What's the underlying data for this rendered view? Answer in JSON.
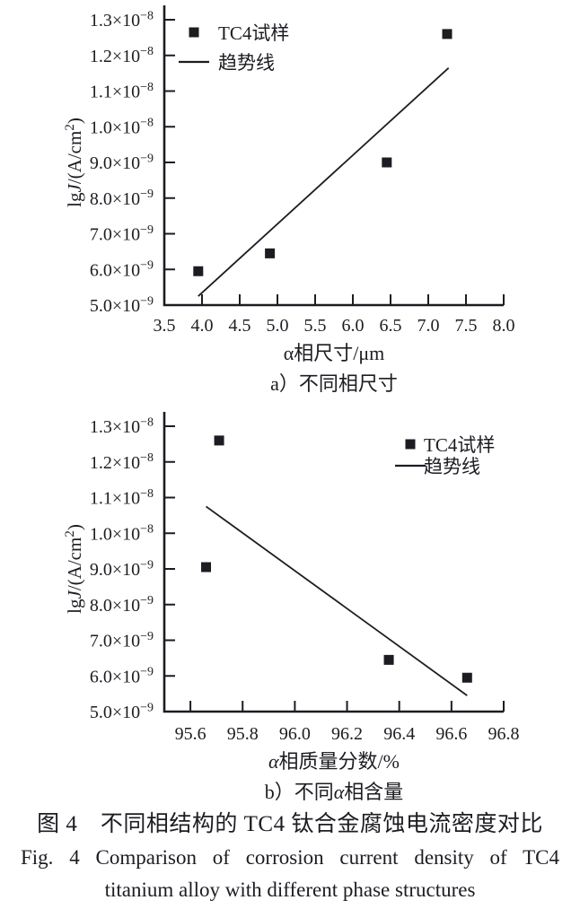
{
  "page": {
    "background": "#ffffff",
    "ink_color": "#1c1c22"
  },
  "figure_caption": {
    "zh": "图 4　不同相结构的 TC4 钛合金腐蚀电流密度对比",
    "en_line1": "Fig. 4    Comparison of corrosion current density of TC4",
    "en_line2": "titanium alloy with different phase structures"
  },
  "chart_data": [
    {
      "id": "a",
      "type": "scatter",
      "title": "",
      "xlabel": "α相尺寸/μm",
      "ylabel": "lg*J*/(A/cm^{2})",
      "sub_caption": "a）不同相尺寸",
      "xlim": [
        3.5,
        8.0
      ],
      "ylim": [
        5e-09,
        1.3e-08
      ],
      "grid": false,
      "legend": {
        "position": "top-left",
        "items": [
          "TC4试样",
          "趋势线"
        ]
      },
      "xticks": [
        {
          "v": 3.5,
          "label": "3.5"
        },
        {
          "v": 4.0,
          "label": "4.0"
        },
        {
          "v": 4.5,
          "label": "4.5"
        },
        {
          "v": 5.0,
          "label": "5.0"
        },
        {
          "v": 5.5,
          "label": "5.5"
        },
        {
          "v": 6.0,
          "label": "6.0"
        },
        {
          "v": 6.5,
          "label": "6.5"
        },
        {
          "v": 7.0,
          "label": "7.0"
        },
        {
          "v": 7.5,
          "label": "7.5"
        },
        {
          "v": 8.0,
          "label": "8.0"
        }
      ],
      "yticks": [
        {
          "v": 5e-09,
          "label": "5.0×10^{−9}"
        },
        {
          "v": 6e-09,
          "label": "6.0×10^{−9}"
        },
        {
          "v": 7e-09,
          "label": "7.0×10^{−9}"
        },
        {
          "v": 8e-09,
          "label": "8.0×10^{−9}"
        },
        {
          "v": 9e-09,
          "label": "9.0×10^{−9}"
        },
        {
          "v": 1e-08,
          "label": "1.0×10^{−8}"
        },
        {
          "v": 1.1e-08,
          "label": "1.1×10^{−8}"
        },
        {
          "v": 1.2e-08,
          "label": "1.2×10^{−8}"
        },
        {
          "v": 1.3e-08,
          "label": "1.3×10^{−8}"
        }
      ],
      "series": [
        {
          "name": "TC4试样",
          "type": "scatter",
          "marker": "square",
          "color": "#1c1c22",
          "points": [
            [
              3.95,
              5.95e-09
            ],
            [
              4.9,
              6.45e-09
            ],
            [
              6.45,
              9e-09
            ],
            [
              7.25,
              1.26e-08
            ]
          ]
        },
        {
          "name": "趋势线",
          "type": "line",
          "color": "#1c1c22",
          "points": [
            [
              3.95,
              5.25e-09
            ],
            [
              7.27,
              1.165e-08
            ]
          ]
        }
      ]
    },
    {
      "id": "b",
      "type": "scatter",
      "title": "",
      "xlabel": "*α*相质量分数/%",
      "ylabel": "lg*J*/(A/cm^{2})",
      "sub_caption": "b）不同*α*相含量",
      "xlim": [
        95.5,
        96.8
      ],
      "ylim": [
        5e-09,
        1.3e-08
      ],
      "grid": false,
      "legend": {
        "position": "top-right",
        "items": [
          "TC4试样",
          "趋势线"
        ]
      },
      "xticks": [
        {
          "v": 95.6,
          "label": "95.6"
        },
        {
          "v": 95.8,
          "label": "95.8"
        },
        {
          "v": 96.0,
          "label": "96.0"
        },
        {
          "v": 96.2,
          "label": "96.2"
        },
        {
          "v": 96.4,
          "label": "96.4"
        },
        {
          "v": 96.6,
          "label": "96.6"
        },
        {
          "v": 96.8,
          "label": "96.8"
        }
      ],
      "yticks": [
        {
          "v": 5e-09,
          "label": "5.0×10^{−9}"
        },
        {
          "v": 6e-09,
          "label": "6.0×10^{−9}"
        },
        {
          "v": 7e-09,
          "label": "7.0×10^{−9}"
        },
        {
          "v": 8e-09,
          "label": "8.0×10^{−9}"
        },
        {
          "v": 9e-09,
          "label": "9.0×10^{−9}"
        },
        {
          "v": 1e-08,
          "label": "1.0×10^{−8}"
        },
        {
          "v": 1.1e-08,
          "label": "1.1×10^{−8}"
        },
        {
          "v": 1.2e-08,
          "label": "1.2×10^{−8}"
        },
        {
          "v": 1.3e-08,
          "label": "1.3×10^{−8}"
        }
      ],
      "series": [
        {
          "name": "TC4试样",
          "type": "scatter",
          "marker": "square",
          "color": "#1c1c22",
          "points": [
            [
              95.66,
              9.05e-09
            ],
            [
              95.71,
              1.26e-08
            ],
            [
              96.36,
              6.45e-09
            ],
            [
              96.66,
              5.95e-09
            ]
          ]
        },
        {
          "name": "趋势线",
          "type": "line",
          "color": "#1c1c22",
          "points": [
            [
              95.66,
              1.075e-08
            ],
            [
              96.66,
              5.45e-09
            ]
          ]
        }
      ]
    }
  ]
}
